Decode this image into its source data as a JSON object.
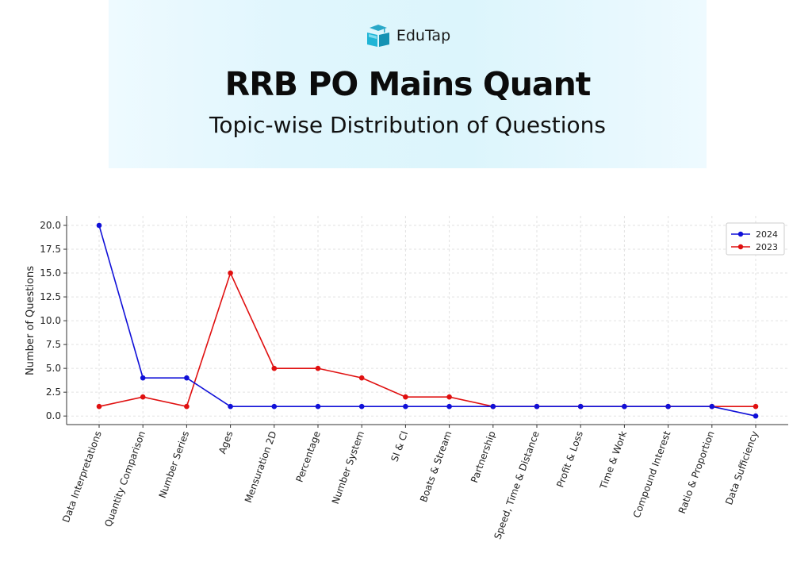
{
  "header": {
    "brand": "EduTap",
    "logo_icon": "book-mortarboard-icon",
    "title": "RRB PO Mains Quant",
    "subtitle": "Topic-wise Distribution of Questions"
  },
  "chart_data": {
    "type": "line",
    "title": "",
    "xlabel": "",
    "ylabel": "Number of Questions",
    "categories": [
      "Data Interpretations",
      "Quantity Comparison",
      "Number Series",
      "Ages",
      "Mensuration 2D",
      "Percentage",
      "Number System",
      "SI & CI",
      "Boats & Stream",
      "Partnership",
      "Speed, Time & Distance",
      "Profit & Loss",
      "Time & Work",
      "Compound Interest",
      "Ratio & Proportion",
      "Data Sufficiency"
    ],
    "series": [
      {
        "name": "2024",
        "color": "#1010d8",
        "values": [
          20,
          4,
          4,
          1,
          1,
          1,
          1,
          1,
          1,
          1,
          1,
          1,
          1,
          1,
          1,
          0
        ]
      },
      {
        "name": "2023",
        "color": "#e01010",
        "values": [
          1,
          2,
          1,
          15,
          5,
          5,
          4,
          2,
          2,
          1,
          1,
          1,
          1,
          1,
          1,
          1
        ]
      }
    ],
    "yticks": [
      "0.0",
      "2.5",
      "5.0",
      "7.5",
      "10.0",
      "12.5",
      "15.0",
      "17.5",
      "20.0"
    ],
    "ylim": [
      -0.9,
      21
    ],
    "grid": true,
    "legend_position": "top-right"
  }
}
